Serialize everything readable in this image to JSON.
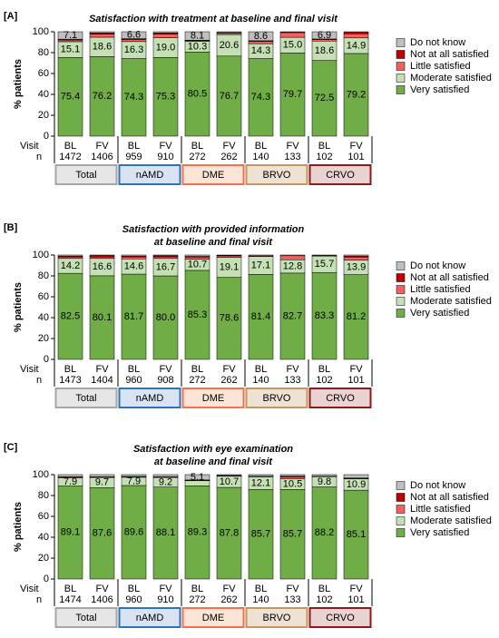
{
  "chart_data": [
    {
      "type": "stacked_bar",
      "panel_label": "[A]",
      "title": [
        "Satisfaction with treatment at baseline and final visit"
      ],
      "ylabel": "% patients",
      "row_labels": [
        "Visit",
        "n"
      ],
      "categories": [
        "BL",
        "FV",
        "BL",
        "FV",
        "BL",
        "FV",
        "BL",
        "FV",
        "BL",
        "FV"
      ],
      "n": [
        "1472",
        "1406",
        "959",
        "910",
        "272",
        "262",
        "140",
        "133",
        "102",
        "101"
      ],
      "groups": [
        {
          "name": "Total",
          "color": "#e7e6e6",
          "border": "#a6a6a6"
        },
        {
          "name": "nAMD",
          "color": "#dae3f3",
          "border": "#2e75b6"
        },
        {
          "name": "DME",
          "color": "#fbe5d6",
          "border": "#f4704f"
        },
        {
          "name": "BRVO",
          "color": "#ede2d3",
          "border": "#c5965f"
        },
        {
          "name": "CRVO",
          "color": "#e9d3d3",
          "border": "#8b1a1a"
        }
      ],
      "ylim": [
        0,
        100
      ],
      "yticks": [
        0,
        20,
        40,
        60,
        80,
        100
      ],
      "series": [
        {
          "name": "Very satisfied",
          "color": "#70ad47",
          "text_color": "#ffffff",
          "values": [
            75.4,
            76.2,
            74.3,
            75.3,
            80.5,
            76.7,
            74.3,
            79.7,
            72.5,
            79.2
          ],
          "value_labels": [
            "75.4",
            "76.2",
            "74.3",
            "75.3",
            "80.5",
            "76.7",
            "74.3",
            "79.7",
            "72.5",
            "79.2"
          ]
        },
        {
          "name": "Moderate satisfied",
          "color": "#c5e0b4",
          "text_color": "#000000",
          "values": [
            15.1,
            18.6,
            16.3,
            19.0,
            10.3,
            20.6,
            14.3,
            15.0,
            18.6,
            14.9
          ],
          "value_labels": [
            "15.1",
            "18.6",
            "16.3",
            "19.0",
            "10.3",
            "20.6",
            "14.3",
            "15.0",
            "18.6",
            "14.9"
          ]
        },
        {
          "name": "Little satisfied",
          "color": "#f4605f",
          "values": [
            1.6,
            3.0,
            1.8,
            3.5,
            0.7,
            1.5,
            2.1,
            4.5,
            1.5,
            4.0
          ]
        },
        {
          "name": "Not at all satisfied",
          "color": "#c00000",
          "values": [
            0.8,
            1.0,
            1.0,
            1.0,
            0.4,
            0.4,
            0.7,
            0.8,
            0.5,
            1.9
          ]
        },
        {
          "name": "Do not know",
          "color": "#bfbfbf",
          "text_color": "#000000",
          "values": [
            7.1,
            1.2,
            6.6,
            1.2,
            8.1,
            0.8,
            8.6,
            0,
            6.9,
            0
          ],
          "value_labels": [
            "7.1",
            null,
            "6.6",
            null,
            "8.1",
            null,
            "8.6",
            null,
            "6.9",
            null
          ]
        }
      ]
    },
    {
      "type": "stacked_bar",
      "panel_label": "[B]",
      "title": [
        "Satisfaction with provided information",
        "at baseline and final visit"
      ],
      "ylabel": "% patients",
      "row_labels": [
        "Visit",
        "n"
      ],
      "categories": [
        "BL",
        "FV",
        "BL",
        "FV",
        "BL",
        "FV",
        "BL",
        "FV",
        "BL",
        "FV"
      ],
      "n": [
        "1473",
        "1404",
        "960",
        "908",
        "272",
        "262",
        "140",
        "133",
        "102",
        "101"
      ],
      "groups": [
        {
          "name": "Total",
          "color": "#e7e6e6",
          "border": "#a6a6a6"
        },
        {
          "name": "nAMD",
          "color": "#dae3f3",
          "border": "#2e75b6"
        },
        {
          "name": "DME",
          "color": "#fbe5d6",
          "border": "#f4704f"
        },
        {
          "name": "BRVO",
          "color": "#ede2d3",
          "border": "#c5965f"
        },
        {
          "name": "CRVO",
          "color": "#e9d3d3",
          "border": "#8b1a1a"
        }
      ],
      "ylim": [
        0,
        100
      ],
      "yticks": [
        0,
        20,
        40,
        60,
        80,
        100
      ],
      "series": [
        {
          "name": "Very satisfied",
          "color": "#70ad47",
          "text_color": "#ffffff",
          "values": [
            82.5,
            80.1,
            81.7,
            80.0,
            85.3,
            78.6,
            81.4,
            82.7,
            83.3,
            81.2
          ],
          "value_labels": [
            "82.5",
            "80.1",
            "81.7",
            "80.0",
            "85.3",
            "78.6",
            "81.4",
            "82.7",
            "83.3",
            "81.2"
          ]
        },
        {
          "name": "Moderate satisfied",
          "color": "#c5e0b4",
          "text_color": "#000000",
          "values": [
            14.2,
            16.6,
            14.6,
            16.7,
            10.7,
            19.1,
            17.1,
            12.8,
            15.7,
            13.9
          ],
          "value_labels": [
            "14.2",
            "16.6",
            "14.6",
            "16.7",
            "10.7",
            "19.1",
            "17.1",
            "12.8",
            "15.7",
            "13.9"
          ]
        },
        {
          "name": "Little satisfied",
          "color": "#f4605f",
          "values": [
            1.5,
            1.5,
            1.8,
            1.6,
            2.0,
            1.5,
            0.7,
            3.8,
            0.5,
            2.9
          ]
        },
        {
          "name": "Not at all satisfied",
          "color": "#c00000",
          "values": [
            0.8,
            1.2,
            0.9,
            1.0,
            0.7,
            0.4,
            0,
            0,
            0,
            1.0
          ]
        },
        {
          "name": "Do not know",
          "color": "#bfbfbf",
          "values": [
            1.0,
            0.6,
            1.0,
            0.7,
            1.3,
            0.4,
            0.8,
            0.7,
            0.5,
            1.0
          ]
        }
      ]
    },
    {
      "type": "stacked_bar",
      "panel_label": "[C]",
      "title": [
        "Satisfaction with eye examination",
        "at baseline and final visit"
      ],
      "ylabel": "% patients",
      "row_labels": [
        "Visit",
        "n"
      ],
      "categories": [
        "BL",
        "FV",
        "BL",
        "FV",
        "BL",
        "FV",
        "BL",
        "FV",
        "BL",
        "FV"
      ],
      "n": [
        "1474",
        "1406",
        "960",
        "910",
        "272",
        "262",
        "140",
        "133",
        "102",
        "101"
      ],
      "groups": [
        {
          "name": "Total",
          "color": "#e7e6e6",
          "border": "#a6a6a6"
        },
        {
          "name": "nAMD",
          "color": "#dae3f3",
          "border": "#2e75b6"
        },
        {
          "name": "DME",
          "color": "#fbe5d6",
          "border": "#f4704f"
        },
        {
          "name": "BRVO",
          "color": "#ede2d3",
          "border": "#c5965f"
        },
        {
          "name": "CRVO",
          "color": "#e9d3d3",
          "border": "#8b1a1a"
        }
      ],
      "ylim": [
        0,
        100
      ],
      "yticks": [
        0,
        20,
        40,
        60,
        80,
        100
      ],
      "series": [
        {
          "name": "Very satisfied",
          "color": "#70ad47",
          "text_color": "#ffffff",
          "values": [
            89.1,
            87.6,
            89.6,
            88.1,
            89.3,
            87.8,
            85.7,
            85.7,
            88.2,
            85.1
          ],
          "value_labels": [
            "89.1",
            "87.6",
            "89.6",
            "88.1",
            "89.3",
            "87.8",
            "85.7",
            "85.7",
            "88.2",
            "85.1"
          ]
        },
        {
          "name": "Moderate satisfied",
          "color": "#c5e0b4",
          "text_color": "#000000",
          "values": [
            7.9,
            9.7,
            7.9,
            9.2,
            4.9,
            10.7,
            12.1,
            10.5,
            9.8,
            10.9
          ],
          "value_labels": [
            "7.9",
            "9.7",
            "7.9",
            "9.2",
            null,
            "10.7",
            "12.1",
            "10.5",
            "9.8",
            "10.9"
          ]
        },
        {
          "name": "Little satisfied",
          "color": "#f4605f",
          "values": [
            0.8,
            0.5,
            0.6,
            0.6,
            0.5,
            0.5,
            0.7,
            1.5,
            0.5,
            0.5
          ]
        },
        {
          "name": "Not at all satisfied",
          "color": "#c00000",
          "values": [
            0.2,
            0.2,
            0.2,
            0.2,
            0.2,
            0.2,
            0,
            0.8,
            0,
            0.3
          ]
        },
        {
          "name": "Do not know",
          "color": "#bfbfbf",
          "text_color": "#000000",
          "values": [
            2.0,
            2.0,
            1.7,
            1.9,
            5.1,
            0.8,
            1.5,
            1.5,
            1.5,
            3.2
          ],
          "value_labels": [
            null,
            null,
            null,
            null,
            "5.1",
            null,
            null,
            null,
            null,
            null
          ]
        }
      ]
    }
  ]
}
